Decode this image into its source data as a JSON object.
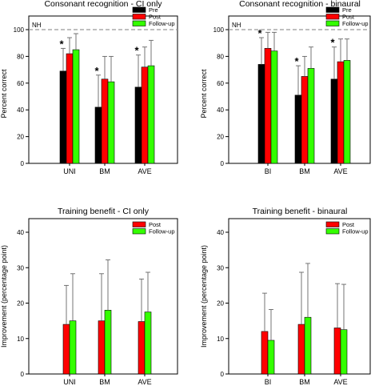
{
  "chart_data": [
    {
      "type": "bar",
      "title": "Consonant recognition - CI only",
      "xlabel": "",
      "ylabel": "Percent correct",
      "ylim": [
        0,
        100
      ],
      "yticks": [
        0,
        20,
        40,
        60,
        80,
        100
      ],
      "categories": [
        "UNI",
        "BM",
        "AVE"
      ],
      "reference_line": {
        "label": "NH",
        "value": 100
      },
      "legend_position": "top-right",
      "significance_markers": [
        {
          "category": "UNI",
          "symbol": "*"
        },
        {
          "category": "BM",
          "symbol": "*"
        },
        {
          "category": "AVE",
          "symbol": "*"
        }
      ],
      "series": [
        {
          "name": "Pre",
          "color": "#000000",
          "values": [
            69,
            42,
            57
          ],
          "error_plus": [
            17,
            24,
            24
          ]
        },
        {
          "name": "Post",
          "color": "#ff0000",
          "values": [
            82,
            63,
            72
          ],
          "error_plus": [
            12,
            17,
            15
          ]
        },
        {
          "name": "Follow-up",
          "color": "#33ff00",
          "values": [
            85,
            61,
            73
          ],
          "error_plus": [
            12,
            19,
            19
          ]
        }
      ]
    },
    {
      "type": "bar",
      "title": "Consonant recognition - binaural",
      "xlabel": "",
      "ylabel": "Percent correct",
      "ylim": [
        0,
        100
      ],
      "yticks": [
        0,
        20,
        40,
        60,
        80,
        100
      ],
      "categories": [
        "BI",
        "BM",
        "AVE"
      ],
      "reference_line": {
        "label": "NH",
        "value": 100
      },
      "legend_position": "top-right",
      "significance_markers": [
        {
          "category": "BI",
          "symbol": "*"
        },
        {
          "category": "BM",
          "symbol": "*"
        },
        {
          "category": "AVE",
          "symbol": "*"
        }
      ],
      "series": [
        {
          "name": "Pre",
          "color": "#000000",
          "values": [
            74,
            51,
            63
          ],
          "error_plus": [
            20,
            22,
            24
          ]
        },
        {
          "name": "Post",
          "color": "#ff0000",
          "values": [
            86,
            65,
            76
          ],
          "error_plus": [
            12,
            15,
            17
          ]
        },
        {
          "name": "Follow-up",
          "color": "#33ff00",
          "values": [
            84,
            71,
            77
          ],
          "error_plus": [
            14,
            16,
            16
          ]
        }
      ]
    },
    {
      "type": "bar",
      "title": "Training benefit - CI only",
      "xlabel": "",
      "ylabel": "Improvement (percentage point)",
      "ylim": [
        0,
        40
      ],
      "yticks": [
        0,
        10,
        20,
        30,
        40
      ],
      "categories": [
        "UNI",
        "BM",
        "AVE"
      ],
      "legend_position": "top-right",
      "series": [
        {
          "name": "Post",
          "color": "#ff0000",
          "values": [
            14,
            15,
            14.8
          ],
          "error_plus": [
            11,
            13.3,
            12
          ]
        },
        {
          "name": "Follow-up",
          "color": "#33ff00",
          "values": [
            15,
            18,
            17.5
          ],
          "error_plus": [
            13.3,
            14.2,
            11.2
          ]
        }
      ]
    },
    {
      "type": "bar",
      "title": "Training benefit - binaural",
      "xlabel": "",
      "ylabel": "Improvement (percentage point)",
      "ylim": [
        0,
        40
      ],
      "yticks": [
        0,
        10,
        20,
        30,
        40
      ],
      "categories": [
        "BI",
        "BM",
        "AVE"
      ],
      "legend_position": "top-right",
      "series": [
        {
          "name": "Post",
          "color": "#ff0000",
          "values": [
            12,
            14,
            13
          ],
          "error_plus": [
            10.8,
            14.7,
            12.5
          ]
        },
        {
          "name": "Follow-up",
          "color": "#33ff00",
          "values": [
            9.5,
            16,
            12.5
          ],
          "error_plus": [
            8.7,
            15.2,
            12.8
          ]
        }
      ]
    }
  ]
}
